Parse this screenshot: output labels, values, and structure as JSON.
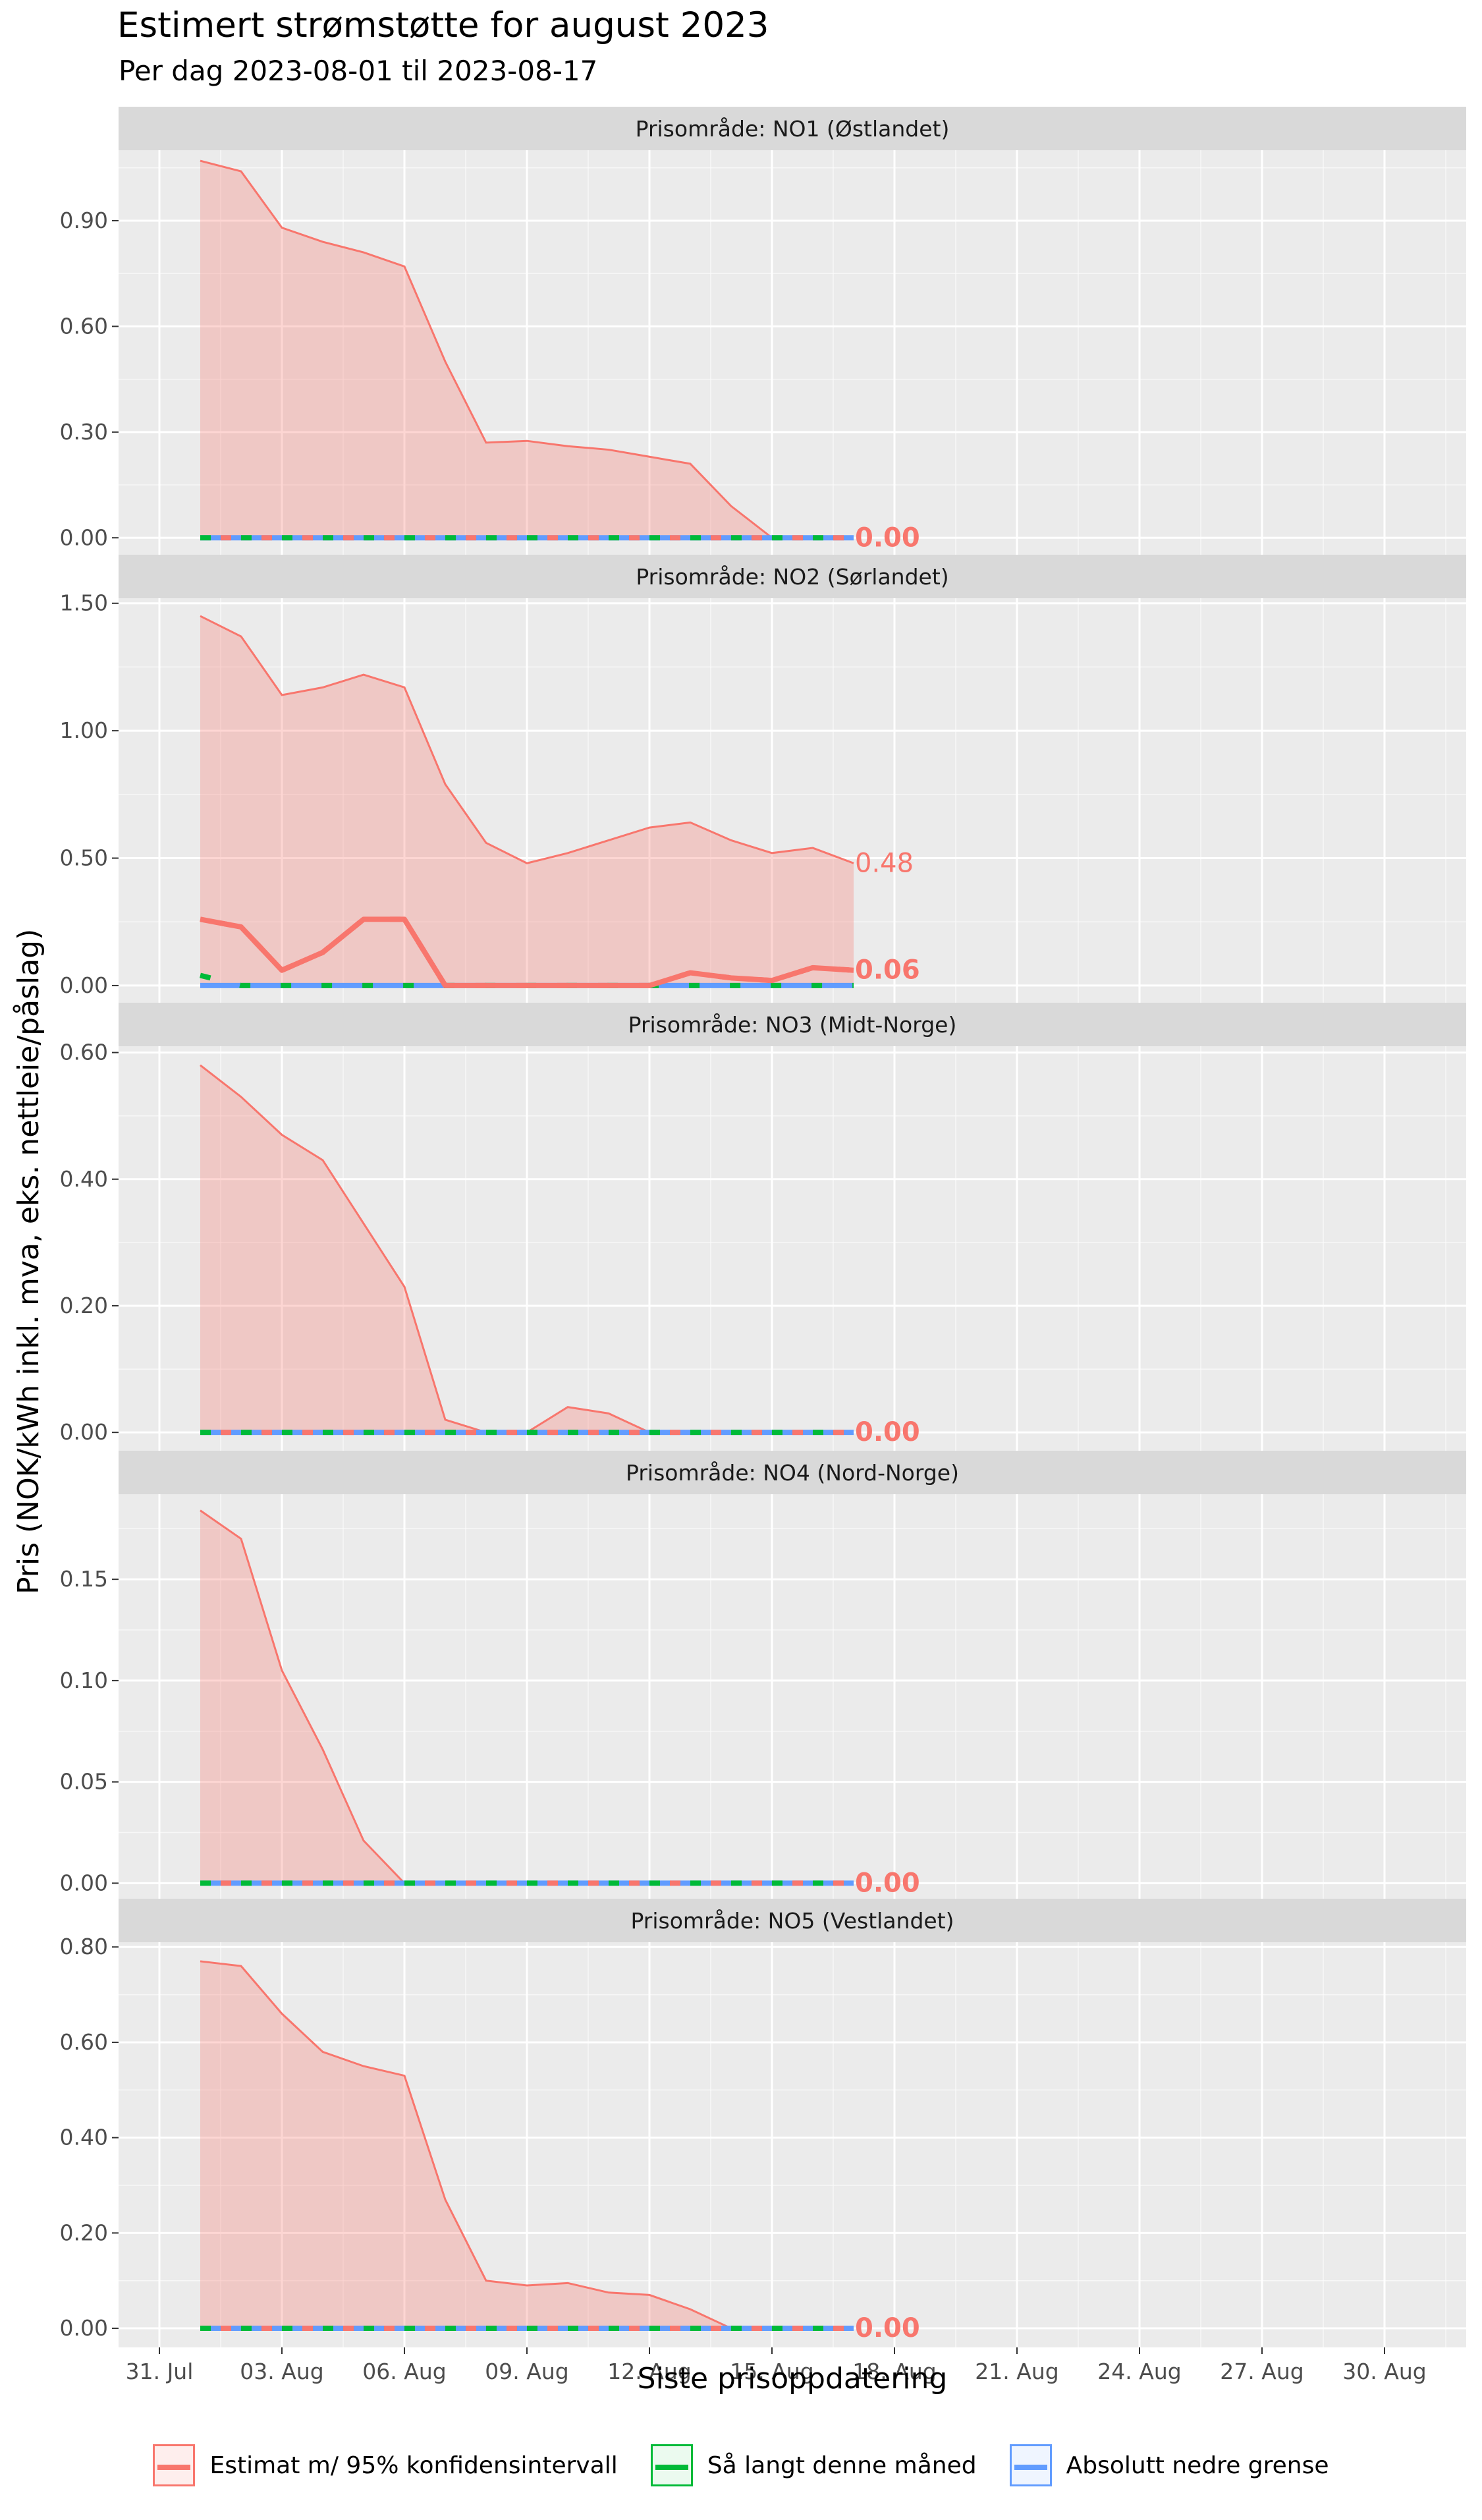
{
  "title": "Estimert strømstøtte for august 2023",
  "subtitle": "Per dag 2023-08-01 til 2023-08-17",
  "chart_data": {
    "type": "line",
    "xlabel": "Siste prisoppdatering",
    "ylabel": "Pris (NOK/kWh inkl. mva, eks. nettleie/påslag)",
    "x_axis": {
      "range": [
        "2023-07-30",
        "2023-09-01"
      ],
      "ticks": [
        "31. Jul",
        "03. Aug",
        "06. Aug",
        "09. Aug",
        "12. Aug",
        "15. Aug",
        "18. Aug",
        "21. Aug",
        "24. Aug",
        "27. Aug",
        "30. Aug"
      ],
      "tick_dates": [
        "2023-07-31",
        "2023-08-03",
        "2023-08-06",
        "2023-08-09",
        "2023-08-12",
        "2023-08-15",
        "2023-08-18",
        "2023-08-21",
        "2023-08-24",
        "2023-08-27",
        "2023-08-30"
      ]
    },
    "dates": [
      "2023-08-01",
      "2023-08-02",
      "2023-08-03",
      "2023-08-04",
      "2023-08-05",
      "2023-08-06",
      "2023-08-07",
      "2023-08-08",
      "2023-08-09",
      "2023-08-10",
      "2023-08-11",
      "2023-08-12",
      "2023-08-13",
      "2023-08-14",
      "2023-08-15",
      "2023-08-16",
      "2023-08-17"
    ],
    "grid": true,
    "legend_position": "bottom",
    "colors": {
      "estimate": "#F8766D",
      "ci_fill": "#F8766D",
      "so_far": "#00BA38",
      "lower_bound": "#619CFF",
      "panel_bg": "#EBEBEB",
      "strip_bg": "#D9D9D9",
      "grid": "#FFFFFF"
    },
    "legend": [
      {
        "name": "Estimat m/ 95% konfidensintervall",
        "color": "#F8766D"
      },
      {
        "name": "Så langt denne måned",
        "color": "#00BA38"
      },
      {
        "name": "Absolutt nedre grense",
        "color": "#619CFF"
      }
    ],
    "panels": [
      {
        "strip": "Prisområde: NO1 (Østlandet)",
        "ylim": [
          -0.05,
          1.1
        ],
        "yticks": [
          0,
          0.3,
          0.6,
          0.9
        ],
        "ytick_labels": [
          "0.00",
          "0.30",
          "0.60",
          "0.90"
        ],
        "upper": [
          1.07,
          1.04,
          0.88,
          0.84,
          0.81,
          0.77,
          0.5,
          0.27,
          0.275,
          0.26,
          0.25,
          0.23,
          0.21,
          0.09,
          0,
          0,
          0
        ],
        "estimate": [
          0,
          0,
          0,
          0,
          0,
          0,
          0,
          0,
          0,
          0,
          0,
          0,
          0,
          0,
          0,
          0,
          0
        ],
        "so_far": [
          0,
          0,
          0,
          0,
          0,
          0,
          0,
          0,
          0,
          0,
          0,
          0,
          0,
          0,
          0,
          0,
          0
        ],
        "lower_bound": [
          0,
          0,
          0,
          0,
          0,
          0,
          0,
          0,
          0,
          0,
          0,
          0,
          0,
          0,
          0,
          0,
          0
        ],
        "upper_end_label": "",
        "estimate_end_label": "0.00"
      },
      {
        "strip": "Prisområde: NO2 (Sørlandet)",
        "ylim": [
          -0.07,
          1.52
        ],
        "yticks": [
          0,
          0.5,
          1.0,
          1.5
        ],
        "ytick_labels": [
          "0.00",
          "0.50",
          "1.00",
          "1.50"
        ],
        "upper": [
          1.45,
          1.37,
          1.14,
          1.17,
          1.22,
          1.17,
          0.79,
          0.56,
          0.48,
          0.52,
          0.57,
          0.62,
          0.64,
          0.57,
          0.52,
          0.54,
          0.48
        ],
        "estimate": [
          0.26,
          0.23,
          0.06,
          0.13,
          0.26,
          0.26,
          0,
          0,
          0,
          0,
          0,
          0,
          0.05,
          0.03,
          0.02,
          0.07,
          0.06
        ],
        "so_far": [
          0.04,
          0,
          0,
          0,
          0,
          0,
          0,
          0,
          0,
          0,
          0,
          0,
          0,
          0,
          0,
          0,
          0
        ],
        "lower_bound": [
          0,
          0,
          0,
          0,
          0,
          0,
          0,
          0,
          0,
          0,
          0,
          0,
          0,
          0,
          0,
          0,
          0
        ],
        "upper_end_label": "0.48",
        "estimate_end_label": "0.06"
      },
      {
        "strip": "Prisområde: NO3 (Midt-Norge)",
        "ylim": [
          -0.03,
          0.61
        ],
        "yticks": [
          0,
          0.2,
          0.4,
          0.6
        ],
        "ytick_labels": [
          "0.00",
          "0.20",
          "0.40",
          "0.60"
        ],
        "upper": [
          0.58,
          0.53,
          0.47,
          0.43,
          0.33,
          0.23,
          0.02,
          0,
          0,
          0.04,
          0.03,
          0,
          0,
          0,
          0,
          0,
          0
        ],
        "estimate": [
          0,
          0,
          0,
          0,
          0,
          0,
          0,
          0,
          0,
          0,
          0,
          0,
          0,
          0,
          0,
          0,
          0
        ],
        "so_far": [
          0,
          0,
          0,
          0,
          0,
          0,
          0,
          0,
          0,
          0,
          0,
          0,
          0,
          0,
          0,
          0,
          0
        ],
        "lower_bound": [
          0,
          0,
          0,
          0,
          0,
          0,
          0,
          0,
          0,
          0,
          0,
          0,
          0,
          0,
          0,
          0,
          0
        ],
        "upper_end_label": "",
        "estimate_end_label": "0.00"
      },
      {
        "strip": "Prisområde: NO4 (Nord-Norge)",
        "ylim": [
          -0.008,
          0.192
        ],
        "yticks": [
          0,
          0.05,
          0.1,
          0.15
        ],
        "ytick_labels": [
          "0.00",
          "0.05",
          "0.10",
          "0.15"
        ],
        "upper": [
          0.184,
          0.17,
          0.105,
          0.066,
          0.021,
          0,
          0,
          0,
          0,
          0,
          0,
          0,
          0,
          0,
          0,
          0,
          0
        ],
        "estimate": [
          0,
          0,
          0,
          0,
          0,
          0,
          0,
          0,
          0,
          0,
          0,
          0,
          0,
          0,
          0,
          0,
          0
        ],
        "so_far": [
          0,
          0,
          0,
          0,
          0,
          0,
          0,
          0,
          0,
          0,
          0,
          0,
          0,
          0,
          0,
          0,
          0
        ],
        "lower_bound": [
          0,
          0,
          0,
          0,
          0,
          0,
          0,
          0,
          0,
          0,
          0,
          0,
          0,
          0,
          0,
          0,
          0
        ],
        "upper_end_label": "",
        "estimate_end_label": "0.00"
      },
      {
        "strip": "Prisområde: NO5 (Vestlandet)",
        "ylim": [
          -0.04,
          0.81
        ],
        "yticks": [
          0,
          0.2,
          0.4,
          0.6,
          0.8
        ],
        "ytick_labels": [
          "0.00",
          "0.20",
          "0.40",
          "0.60",
          "0.80"
        ],
        "upper": [
          0.77,
          0.76,
          0.66,
          0.58,
          0.55,
          0.53,
          0.27,
          0.1,
          0.09,
          0.095,
          0.075,
          0.07,
          0.04,
          0,
          0,
          0,
          0
        ],
        "estimate": [
          0,
          0,
          0,
          0,
          0,
          0,
          0,
          0,
          0,
          0,
          0,
          0,
          0,
          0,
          0,
          0,
          0
        ],
        "so_far": [
          0,
          0,
          0,
          0,
          0,
          0,
          0,
          0,
          0,
          0,
          0,
          0,
          0,
          0,
          0,
          0,
          0
        ],
        "lower_bound": [
          0,
          0,
          0,
          0,
          0,
          0,
          0,
          0,
          0,
          0,
          0,
          0,
          0,
          0,
          0,
          0,
          0
        ],
        "upper_end_label": "",
        "estimate_end_label": "0.00"
      }
    ]
  }
}
